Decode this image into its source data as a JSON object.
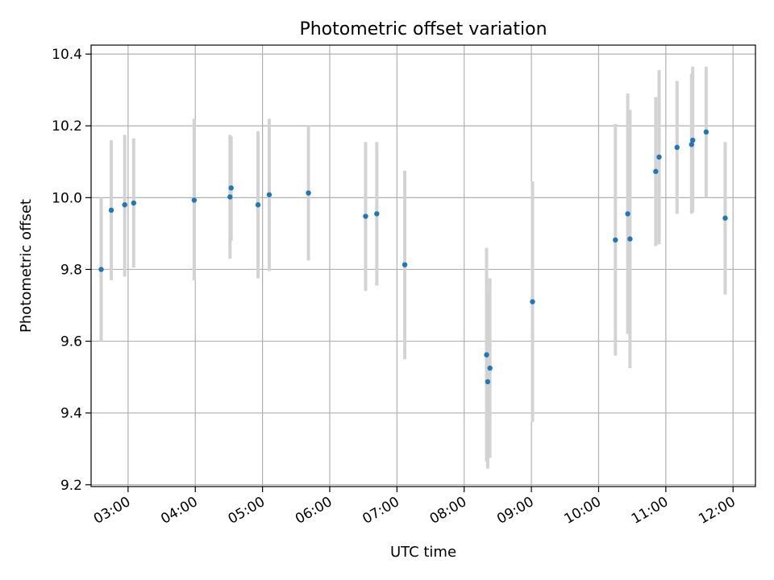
{
  "chart_data": {
    "type": "scatter",
    "title": "Photometric offset variation",
    "xlabel": "UTC time",
    "ylabel": "Photometric offset",
    "grid": true,
    "xlim": [
      "02:27",
      "12:20"
    ],
    "ylim": [
      9.195,
      10.425
    ],
    "x_ticks": [
      "03:00",
      "04:00",
      "05:00",
      "06:00",
      "07:00",
      "08:00",
      "09:00",
      "10:00",
      "11:00",
      "12:00"
    ],
    "y_ticks": [
      "9.2",
      "9.4",
      "9.6",
      "9.8",
      "10.0",
      "10.2",
      "10.4"
    ],
    "marker_color": "#1f77b4",
    "errorbar_color": "#d3d3d3",
    "points": [
      {
        "time": "02:36",
        "y": 9.8,
        "ylow": 9.6,
        "yhigh": 10.0
      },
      {
        "time": "02:45",
        "y": 9.965,
        "ylow": 9.77,
        "yhigh": 10.16
      },
      {
        "time": "02:57",
        "y": 9.98,
        "ylow": 9.78,
        "yhigh": 10.175
      },
      {
        "time": "03:05",
        "y": 9.985,
        "ylow": 9.805,
        "yhigh": 10.165
      },
      {
        "time": "03:59",
        "y": 9.993,
        "ylow": 9.77,
        "yhigh": 10.22
      },
      {
        "time": "04:31",
        "y": 10.002,
        "ylow": 9.83,
        "yhigh": 10.175
      },
      {
        "time": "04:32",
        "y": 10.027,
        "ylow": 9.88,
        "yhigh": 10.17
      },
      {
        "time": "04:56",
        "y": 9.98,
        "ylow": 9.775,
        "yhigh": 10.185
      },
      {
        "time": "05:06",
        "y": 10.008,
        "ylow": 9.795,
        "yhigh": 10.22
      },
      {
        "time": "05:41",
        "y": 10.013,
        "ylow": 9.825,
        "yhigh": 10.2
      },
      {
        "time": "06:32",
        "y": 9.948,
        "ylow": 9.74,
        "yhigh": 10.155
      },
      {
        "time": "06:42",
        "y": 9.955,
        "ylow": 9.755,
        "yhigh": 10.155
      },
      {
        "time": "07:07",
        "y": 9.813,
        "ylow": 9.55,
        "yhigh": 10.075
      },
      {
        "time": "08:20",
        "y": 9.562,
        "ylow": 9.265,
        "yhigh": 9.86
      },
      {
        "time": "08:21",
        "y": 9.487,
        "ylow": 9.245,
        "yhigh": 9.735
      },
      {
        "time": "08:23",
        "y": 9.525,
        "ylow": 9.275,
        "yhigh": 9.775
      },
      {
        "time": "09:01",
        "y": 9.71,
        "ylow": 9.375,
        "yhigh": 10.045
      },
      {
        "time": "10:15",
        "y": 9.882,
        "ylow": 9.56,
        "yhigh": 10.205
      },
      {
        "time": "10:26",
        "y": 9.955,
        "ylow": 9.62,
        "yhigh": 10.29
      },
      {
        "time": "10:28",
        "y": 9.885,
        "ylow": 9.525,
        "yhigh": 10.245
      },
      {
        "time": "10:51",
        "y": 10.073,
        "ylow": 9.865,
        "yhigh": 10.28
      },
      {
        "time": "10:54",
        "y": 10.113,
        "ylow": 9.87,
        "yhigh": 10.355
      },
      {
        "time": "11:10",
        "y": 10.14,
        "ylow": 9.955,
        "yhigh": 10.325
      },
      {
        "time": "11:23",
        "y": 10.148,
        "ylow": 9.955,
        "yhigh": 10.345
      },
      {
        "time": "11:24",
        "y": 10.16,
        "ylow": 9.96,
        "yhigh": 10.365
      },
      {
        "time": "11:36",
        "y": 10.183,
        "ylow": 10.0,
        "yhigh": 10.365
      },
      {
        "time": "11:53",
        "y": 9.943,
        "ylow": 9.73,
        "yhigh": 10.155
      }
    ]
  }
}
